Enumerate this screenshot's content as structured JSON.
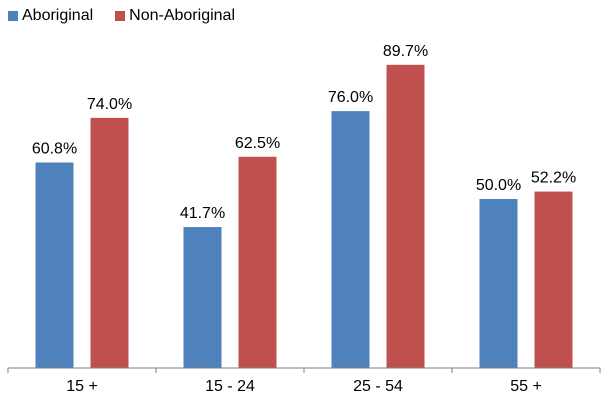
{
  "chart_data": {
    "type": "bar",
    "title": "",
    "xlabel": "",
    "ylabel": "",
    "categories": [
      "15 +",
      "15 - 24",
      "25 - 54",
      "55 +"
    ],
    "series": [
      {
        "name": "Aboriginal",
        "values": [
          60.8,
          41.7,
          76.0,
          50.0
        ],
        "labels": [
          "60.8%",
          "41.7%",
          "76.0%",
          "50.0%"
        ],
        "color": "#4F81BD"
      },
      {
        "name": "Non-Aboriginal",
        "values": [
          74.0,
          62.5,
          89.7,
          52.2
        ],
        "labels": [
          "74.0%",
          "62.5%",
          "89.7%",
          "52.2%"
        ],
        "color": "#C0504D"
      }
    ],
    "ylim": [
      0,
      100
    ],
    "grid": false,
    "legend_position": "top-left"
  }
}
